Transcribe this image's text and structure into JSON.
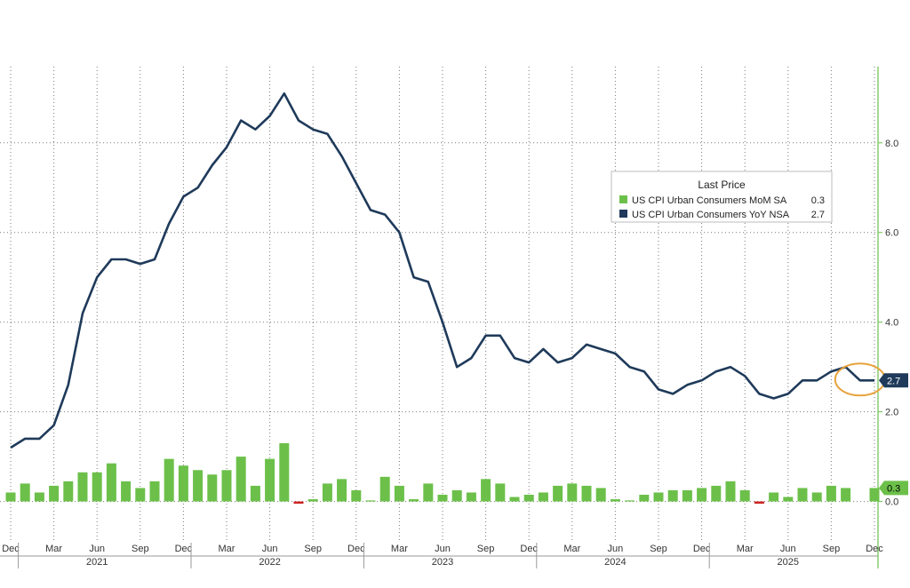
{
  "chart_data": {
    "type": "bar+line",
    "legend_title": "Last Price",
    "legend_position": "top-right",
    "series": [
      {
        "name": "US CPI Urban Consumers MoM SA",
        "last_value": "0.3",
        "color": "#6cc04a",
        "negative_color": "#cc2222",
        "type": "bar",
        "values": [
          0.2,
          0.4,
          0.2,
          0.35,
          0.45,
          0.65,
          0.65,
          0.85,
          0.45,
          0.3,
          0.45,
          0.95,
          0.8,
          0.7,
          0.6,
          0.7,
          1.0,
          0.35,
          0.95,
          1.3,
          -0.05,
          0.05,
          0.4,
          0.5,
          0.25,
          0.0,
          0.55,
          0.35,
          0.05,
          0.4,
          0.15,
          0.25,
          0.2,
          0.5,
          0.4,
          0.1,
          0.15,
          0.2,
          0.35,
          0.4,
          0.35,
          0.3,
          0.05,
          0.0,
          0.15,
          0.2,
          0.25,
          0.25,
          0.3,
          0.35,
          0.45,
          0.25,
          -0.05,
          0.2,
          0.1,
          0.3,
          0.2,
          0.35,
          0.3,
          null,
          0.3
        ]
      },
      {
        "name": "US CPI Urban Consumers YoY NSA",
        "last_value": "2.7",
        "color": "#1f3a5a",
        "type": "line",
        "values": [
          1.2,
          1.4,
          1.4,
          1.7,
          2.6,
          4.2,
          5.0,
          5.4,
          5.4,
          5.3,
          5.4,
          6.2,
          6.8,
          7.0,
          7.5,
          7.9,
          8.5,
          8.3,
          8.6,
          9.1,
          8.5,
          8.3,
          8.2,
          7.7,
          7.1,
          6.5,
          6.4,
          6.0,
          5.0,
          4.9,
          4.0,
          3.0,
          3.2,
          3.7,
          3.7,
          3.2,
          3.1,
          3.4,
          3.1,
          3.2,
          3.5,
          3.4,
          3.3,
          3.0,
          2.9,
          2.5,
          2.4,
          2.6,
          2.7,
          2.9,
          3.0,
          2.8,
          2.4,
          2.3,
          2.4,
          2.7,
          2.7,
          2.9,
          3.0,
          2.7,
          2.7
        ]
      }
    ],
    "y_axis": {
      "ylim": [
        -0.9,
        9.7
      ],
      "ticks": [
        "8.0",
        "6.0",
        "4.0",
        "2.0",
        "0.0"
      ],
      "tick_values": [
        8,
        6,
        4,
        2,
        0
      ]
    },
    "x_axis": {
      "month_ticks": [
        {
          "index": 0,
          "label": "Dec"
        },
        {
          "index": 3,
          "label": "Mar"
        },
        {
          "index": 6,
          "label": "Jun"
        },
        {
          "index": 9,
          "label": "Sep"
        },
        {
          "index": 12,
          "label": "Dec"
        },
        {
          "index": 15,
          "label": "Mar"
        },
        {
          "index": 18,
          "label": "Jun"
        },
        {
          "index": 21,
          "label": "Sep"
        },
        {
          "index": 24,
          "label": "Dec"
        },
        {
          "index": 27,
          "label": "Mar"
        },
        {
          "index": 30,
          "label": "Jun"
        },
        {
          "index": 33,
          "label": "Sep"
        },
        {
          "index": 36,
          "label": "Dec"
        },
        {
          "index": 39,
          "label": "Mar"
        },
        {
          "index": 42,
          "label": "Jun"
        },
        {
          "index": 45,
          "label": "Sep"
        },
        {
          "index": 48,
          "label": "Dec"
        },
        {
          "index": 51,
          "label": "Mar"
        },
        {
          "index": 54,
          "label": "Jun"
        },
        {
          "index": 57,
          "label": "Sep"
        },
        {
          "index": 60,
          "label": "Dec"
        }
      ],
      "years": [
        {
          "label": "2021",
          "index": 6
        },
        {
          "label": "2022",
          "index": 18
        },
        {
          "label": "2023",
          "index": 30
        },
        {
          "label": "2024",
          "index": 42
        },
        {
          "label": "2025",
          "index": 54
        }
      ],
      "year_dividers": [
        1,
        13,
        25,
        37,
        49
      ]
    },
    "annotations": [
      {
        "type": "circle",
        "around_index_range": [
          58,
          60
        ],
        "value": 2.7,
        "color": "#e8a23a"
      }
    ],
    "last_labels": [
      {
        "series": 1,
        "text": "2.7",
        "value": 2.7,
        "bg": "#1f3a5a",
        "fg": "#ffffff"
      },
      {
        "series": 0,
        "text": "0.3",
        "value": 0.3,
        "bg": "#6cc04a",
        "fg": "#000000"
      }
    ]
  }
}
